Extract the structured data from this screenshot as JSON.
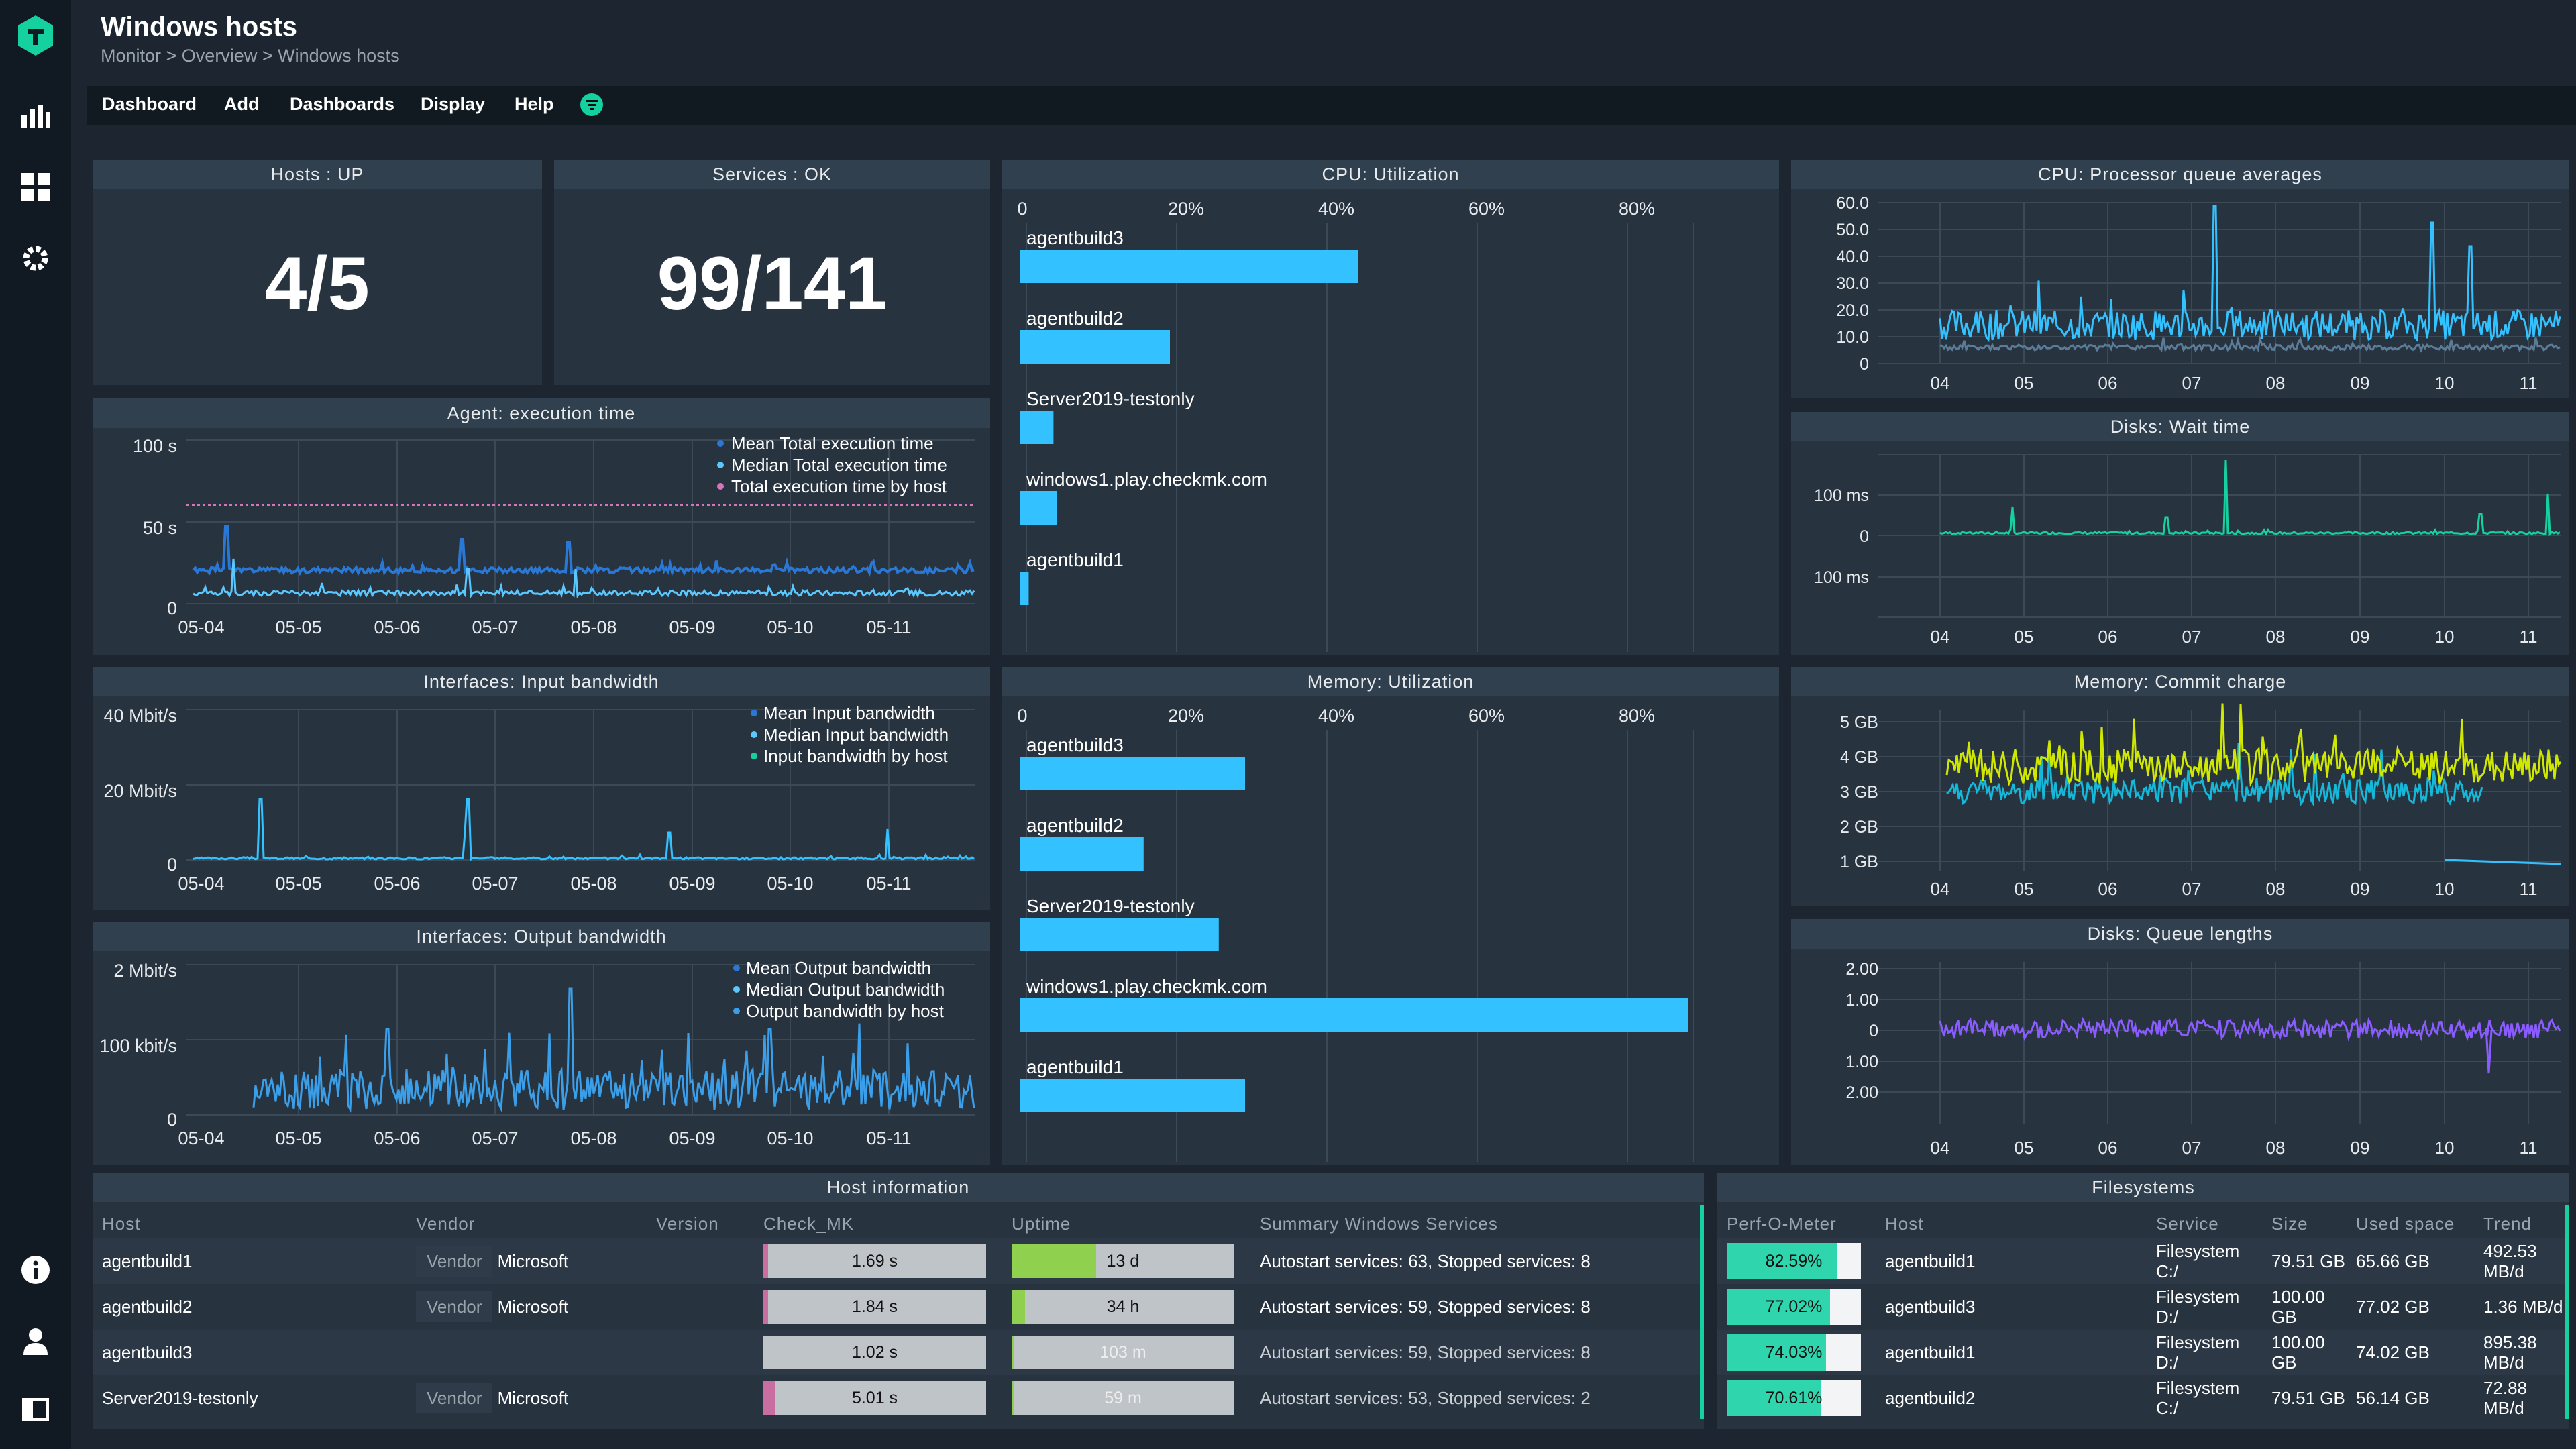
{
  "app": {
    "title": "Windows hosts",
    "breadcrumb": "Monitor > Overview > Windows hosts"
  },
  "rail": {
    "icons": [
      "checkmk-logo-icon",
      "monitor-chart-icon",
      "setup-grid-icon",
      "gear-icon",
      "info-icon",
      "user-icon",
      "sidebar-toggle-icon"
    ]
  },
  "menu": {
    "items": [
      "Dashboard",
      "Add",
      "Dashboards",
      "Display",
      "Help"
    ],
    "filter_icon": "filter-icon"
  },
  "colors": {
    "accent": "#33c1ff",
    "bg": "#1d2630",
    "panel": "#283340",
    "green": "#15d1a0",
    "lime": "#d0e800",
    "purple": "#8a5cff"
  },
  "hosts_up": {
    "title": "Hosts : UP",
    "value": "4/5"
  },
  "services_ok": {
    "title": "Services : OK",
    "value": "99/141"
  },
  "agent_time": {
    "title": "Agent: execution time",
    "yticks": [
      "100 s",
      "50 s",
      "0"
    ],
    "xticks": [
      "05-04",
      "05-05",
      "05-06",
      "05-07",
      "05-08",
      "05-09",
      "05-10",
      "05-11"
    ],
    "legend": [
      "Mean Total execution time",
      "Median Total execution time",
      "Total execution time by host"
    ]
  },
  "in_bw": {
    "title": "Interfaces: Input bandwidth",
    "yticks": [
      "40 Mbit/s",
      "20 Mbit/s",
      "0"
    ],
    "xticks": [
      "05-04",
      "05-05",
      "05-06",
      "05-07",
      "05-08",
      "05-09",
      "05-10",
      "05-11"
    ],
    "legend": [
      "Mean Input bandwidth",
      "Median Input bandwidth",
      "Input bandwidth by host"
    ]
  },
  "out_bw": {
    "title": "Interfaces: Output bandwidth",
    "yticks": [
      "2 Mbit/s",
      "100 kbit/s",
      "0"
    ],
    "xticks": [
      "05-04",
      "05-05",
      "05-06",
      "05-07",
      "05-08",
      "05-09",
      "05-10",
      "05-11"
    ],
    "legend": [
      "Mean Output bandwidth",
      "Median Output bandwidth",
      "Output bandwidth by host"
    ]
  },
  "cpu_util": {
    "title": "CPU: Utilization",
    "xticks": [
      "0",
      "20%",
      "40%",
      "60%",
      "80%"
    ]
  },
  "mem_util": {
    "title": "Memory: Utilization",
    "xticks": [
      "0",
      "20%",
      "40%",
      "60%",
      "80%"
    ]
  },
  "cpu_queue": {
    "title": "CPU: Processor queue averages",
    "yticks": [
      "60.0",
      "50.0",
      "40.0",
      "30.0",
      "20.0",
      "10.0",
      "0"
    ],
    "xticks": [
      "04",
      "05",
      "06",
      "07",
      "08",
      "09",
      "10",
      "11"
    ]
  },
  "disk_wait": {
    "title": "Disks: Wait time",
    "yticks": [
      "100 ms",
      "0",
      "100 ms"
    ],
    "xticks": [
      "04",
      "05",
      "06",
      "07",
      "08",
      "09",
      "10",
      "11"
    ]
  },
  "mem_commit": {
    "title": "Memory: Commit charge",
    "yticks": [
      "5 GB",
      "4 GB",
      "3 GB",
      "2 GB",
      "1 GB"
    ],
    "xticks": [
      "04",
      "05",
      "06",
      "07",
      "08",
      "09",
      "10",
      "11"
    ]
  },
  "disk_queue": {
    "title": "Disks: Queue lengths",
    "yticks": [
      "2.00",
      "1.00",
      "0",
      "1.00",
      "2.00"
    ],
    "xticks": [
      "04",
      "05",
      "06",
      "07",
      "08",
      "09",
      "10",
      "11"
    ]
  },
  "chart_data": [
    {
      "type": "bar",
      "title": "CPU: Utilization",
      "categories": [
        "agentbuild3",
        "agentbuild2",
        "Server2019-testonly",
        "windows1.play.checkmk.com",
        "agentbuild1"
      ],
      "values": [
        45,
        20,
        4.5,
        5,
        1.2
      ],
      "xlim": [
        0,
        100
      ],
      "unit": "%"
    },
    {
      "type": "bar",
      "title": "Memory: Utilization",
      "categories": [
        "agentbuild3",
        "agentbuild2",
        "Server2019-testonly",
        "windows1.play.checkmk.com",
        "agentbuild1"
      ],
      "values": [
        30,
        16.5,
        26.5,
        89,
        30
      ],
      "xlim": [
        0,
        100
      ],
      "unit": "%"
    }
  ],
  "host_info": {
    "title": "Host information",
    "headers": [
      "Host",
      "Vendor",
      "Version",
      "Check_MK",
      "Uptime",
      "Summary Windows Services"
    ],
    "rows": [
      {
        "host": "agentbuild1",
        "vendor_label": "Vendor",
        "vendor": "Microsoft",
        "check_mk": "1.69 s",
        "check_frac": 0.02,
        "uptime": "13 d",
        "uptime_frac": 0.38,
        "summary": "Autostart services: 63, Stopped services: 8",
        "dim": false
      },
      {
        "host": "agentbuild2",
        "vendor_label": "Vendor",
        "vendor": "Microsoft",
        "check_mk": "1.84 s",
        "check_frac": 0.02,
        "uptime": "34 h",
        "uptime_frac": 0.06,
        "summary": "Autostart services: 59, Stopped services: 8",
        "dim": false
      },
      {
        "host": "agentbuild3",
        "vendor_label": "",
        "vendor": "",
        "check_mk": "1.02 s",
        "check_frac": 0.0,
        "uptime": "103 m",
        "uptime_frac": 0.01,
        "summary": "Autostart services: 59, Stopped services: 8",
        "dim": true
      },
      {
        "host": "Server2019-testonly",
        "vendor_label": "Vendor",
        "vendor": "Microsoft",
        "check_mk": "5.01 s",
        "check_frac": 0.05,
        "uptime": "59 m",
        "uptime_frac": 0.01,
        "summary": "Autostart services: 53, Stopped services: 2",
        "dim": true
      }
    ]
  },
  "filesystems": {
    "title": "Filesystems",
    "headers": [
      "Perf-O-Meter",
      "Host",
      "Service",
      "Size",
      "Used space",
      "Trend"
    ],
    "rows": [
      {
        "perf": "82.59%",
        "perf_frac": 0.8259,
        "host": "agentbuild1",
        "service": "Filesystem C:/",
        "size": "79.51 GB",
        "used": "65.66 GB",
        "trend": "492.53 MB/d"
      },
      {
        "perf": "77.02%",
        "perf_frac": 0.7702,
        "host": "agentbuild3",
        "service": "Filesystem D:/",
        "size": "100.00 GB",
        "used": "77.02 GB",
        "trend": "1.36 MB/d"
      },
      {
        "perf": "74.03%",
        "perf_frac": 0.7403,
        "host": "agentbuild1",
        "service": "Filesystem D:/",
        "size": "100.00 GB",
        "used": "74.02 GB",
        "trend": "895.38 MB/d"
      },
      {
        "perf": "70.61%",
        "perf_frac": 0.7061,
        "host": "agentbuild2",
        "service": "Filesystem C:/",
        "size": "79.51 GB",
        "used": "56.14 GB",
        "trend": "72.88 MB/d"
      }
    ]
  }
}
